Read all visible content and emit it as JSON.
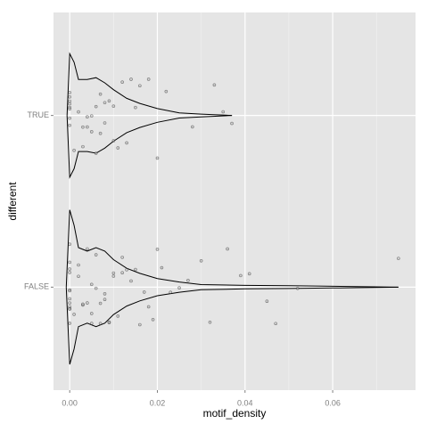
{
  "chart_data": {
    "type": "violin",
    "x_label": "motif_density",
    "y_label": "different",
    "categories": [
      "FALSE",
      "TRUE"
    ],
    "xlim": [
      -0.0037,
      0.0789
    ],
    "xticks": [
      {
        "value": 0,
        "label": "0.00"
      },
      {
        "value": 0.02,
        "label": "0.02"
      },
      {
        "value": 0.04,
        "label": "0.04"
      },
      {
        "value": 0.06,
        "label": "0.06"
      }
    ],
    "x_minor_ticks": [
      0.01,
      0.03,
      0.05,
      0.07
    ],
    "grid": true,
    "points": [
      [
        0,
        0,
        0,
        0,
        0,
        0,
        0,
        0,
        0,
        0,
        0,
        0,
        0.001,
        0.002,
        0.002,
        0.003,
        0.003,
        0.004,
        0.004,
        0.005,
        0.005,
        0.005,
        0.006,
        0.006,
        0.007,
        0.007,
        0.008,
        0.008,
        0.009,
        0.009,
        0.01,
        0.01,
        0.011,
        0.012,
        0.012,
        0.013,
        0.014,
        0.015,
        0.016,
        0.017,
        0.018,
        0.019,
        0.02,
        0.021,
        0.023,
        0.025,
        0.027,
        0.03,
        0.032,
        0.036,
        0.039,
        0.041,
        0.045,
        0.047,
        0.052,
        0.075
      ],
      [
        0,
        0,
        0,
        0,
        0,
        0,
        0,
        0,
        0.001,
        0.002,
        0.003,
        0.003,
        0.004,
        0.004,
        0.005,
        0.005,
        0.006,
        0.006,
        0.007,
        0.007,
        0.008,
        0.008,
        0.009,
        0.01,
        0.01,
        0.011,
        0.012,
        0.013,
        0.014,
        0.015,
        0.016,
        0.018,
        0.02,
        0.022,
        0.028,
        0.033,
        0.035,
        0.037
      ]
    ],
    "violins": [
      {
        "x": [
          -0.0008,
          0,
          0.001,
          0.002,
          0.004,
          0.006,
          0.008,
          0.01,
          0.013,
          0.016,
          0.02,
          0.025,
          0.03,
          0.04,
          0.05,
          0.06,
          0.075
        ],
        "halfwidth": [
          0,
          0.45,
          0.36,
          0.23,
          0.21,
          0.23,
          0.21,
          0.16,
          0.11,
          0.08,
          0.05,
          0.03,
          0.015,
          0.01,
          0.008,
          0.005,
          0
        ]
      },
      {
        "x": [
          -0.0006,
          0,
          0.001,
          0.002,
          0.004,
          0.006,
          0.008,
          0.01,
          0.013,
          0.016,
          0.02,
          0.025,
          0.03,
          0.037
        ],
        "halfwidth": [
          0,
          0.36,
          0.31,
          0.21,
          0.21,
          0.22,
          0.19,
          0.15,
          0.1,
          0.07,
          0.04,
          0.015,
          0.008,
          0
        ]
      }
    ]
  }
}
